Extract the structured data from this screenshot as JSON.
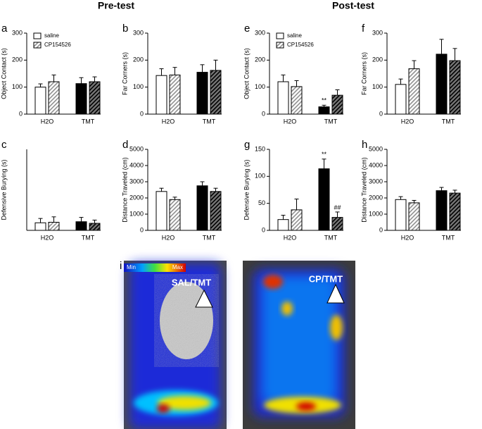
{
  "headers": [
    "Pre-test",
    "Post-test"
  ],
  "chart_data": [
    {
      "type": "bar",
      "panel": "a",
      "y_label": "Object Contact (s)",
      "categories": [
        "H2O",
        "TMT"
      ],
      "ylim": [
        0,
        300
      ],
      "yticks": [
        0,
        100,
        200,
        300
      ],
      "legend": true,
      "series": [
        {
          "name": "saline",
          "colors": [
            "#ffffff",
            "#000000"
          ],
          "hatch": false,
          "values": [
            100,
            113
          ],
          "errors": [
            12,
            22
          ]
        },
        {
          "name": "CP154526",
          "colors": [
            "#909090",
            "#000000"
          ],
          "hatch": true,
          "values": [
            120,
            120
          ],
          "errors": [
            25,
            18
          ]
        }
      ]
    },
    {
      "type": "bar",
      "panel": "b",
      "y_label": "Far Corners (s)",
      "categories": [
        "H2O",
        "TMT"
      ],
      "ylim": [
        0,
        300
      ],
      "yticks": [
        0,
        100,
        200,
        300
      ],
      "legend": false,
      "series": [
        {
          "name": "saline",
          "colors": [
            "#ffffff",
            "#000000"
          ],
          "hatch": false,
          "values": [
            143,
            155
          ],
          "errors": [
            25,
            28
          ]
        },
        {
          "name": "CP154526",
          "colors": [
            "#909090",
            "#000000"
          ],
          "hatch": true,
          "values": [
            145,
            162
          ],
          "errors": [
            28,
            38
          ]
        }
      ]
    },
    {
      "type": "bar",
      "panel": "c",
      "y_label": "Defensive Burying (s)",
      "categories": [
        "H2O",
        "TMT"
      ],
      "ylim": [
        0,
        150
      ],
      "yticks": [],
      "legend": false,
      "series": [
        {
          "name": "saline",
          "colors": [
            "#ffffff",
            "#000000"
          ],
          "hatch": false,
          "values": [
            14,
            16
          ],
          "errors": [
            8,
            8
          ]
        },
        {
          "name": "CP154526",
          "colors": [
            "#909090",
            "#000000"
          ],
          "hatch": true,
          "values": [
            15,
            13
          ],
          "errors": [
            10,
            6
          ]
        }
      ]
    },
    {
      "type": "bar",
      "panel": "d",
      "y_label": "Distance Traveled (cm)",
      "categories": [
        "H2O",
        "TMT"
      ],
      "ylim": [
        0,
        5000
      ],
      "yticks": [
        0,
        1000,
        2000,
        3000,
        4000,
        5000
      ],
      "legend": false,
      "series": [
        {
          "name": "saline",
          "colors": [
            "#ffffff",
            "#000000"
          ],
          "hatch": false,
          "values": [
            2400,
            2750
          ],
          "errors": [
            200,
            250
          ]
        },
        {
          "name": "CP154526",
          "colors": [
            "#909090",
            "#000000"
          ],
          "hatch": true,
          "values": [
            1900,
            2400
          ],
          "errors": [
            150,
            200
          ]
        }
      ]
    },
    {
      "type": "bar",
      "panel": "e",
      "y_label": "Object Contact (s)",
      "categories": [
        "H2O",
        "TMT"
      ],
      "ylim": [
        0,
        300
      ],
      "yticks": [
        0,
        100,
        200,
        300
      ],
      "legend": true,
      "series": [
        {
          "name": "saline",
          "colors": [
            "#ffffff",
            "#000000"
          ],
          "hatch": false,
          "values": [
            120,
            27
          ],
          "errors": [
            25,
            6
          ],
          "significance": [
            null,
            "**"
          ]
        },
        {
          "name": "CP154526",
          "colors": [
            "#909090",
            "#000000"
          ],
          "hatch": true,
          "values": [
            102,
            70
          ],
          "errors": [
            22,
            20
          ]
        }
      ]
    },
    {
      "type": "bar",
      "panel": "f",
      "y_label": "Far Corners (s)",
      "categories": [
        "H2O",
        "TMT"
      ],
      "ylim": [
        0,
        300
      ],
      "yticks": [
        0,
        100,
        200,
        300
      ],
      "legend": false,
      "series": [
        {
          "name": "saline",
          "colors": [
            "#ffffff",
            "#000000"
          ],
          "hatch": false,
          "values": [
            110,
            222
          ],
          "errors": [
            20,
            55
          ]
        },
        {
          "name": "CP154526",
          "colors": [
            "#909090",
            "#000000"
          ],
          "hatch": true,
          "values": [
            168,
            198
          ],
          "errors": [
            30,
            45
          ]
        }
      ]
    },
    {
      "type": "bar",
      "panel": "g",
      "y_label": "Defensive Burying (s)",
      "categories": [
        "H2O",
        "TMT"
      ],
      "ylim": [
        0,
        150
      ],
      "yticks": [
        0,
        50,
        100,
        150
      ],
      "legend": false,
      "series": [
        {
          "name": "saline",
          "colors": [
            "#ffffff",
            "#000000"
          ],
          "hatch": false,
          "values": [
            20,
            114
          ],
          "errors": [
            8,
            18
          ],
          "significance": [
            null,
            "**"
          ]
        },
        {
          "name": "CP154526",
          "colors": [
            "#909090",
            "#000000"
          ],
          "hatch": true,
          "values": [
            38,
            24
          ],
          "errors": [
            20,
            10
          ],
          "significance": [
            null,
            "##"
          ]
        }
      ]
    },
    {
      "type": "bar",
      "panel": "h",
      "y_label": "Distance Traveled (cm)",
      "categories": [
        "H2O",
        "TMT"
      ],
      "ylim": [
        0,
        5000
      ],
      "yticks": [
        0,
        1000,
        2000,
        3000,
        4000,
        5000
      ],
      "legend": false,
      "series": [
        {
          "name": "saline",
          "colors": [
            "#ffffff",
            "#000000"
          ],
          "hatch": false,
          "values": [
            1900,
            2450
          ],
          "errors": [
            180,
            200
          ]
        },
        {
          "name": "CP154526",
          "colors": [
            "#909090",
            "#000000"
          ],
          "hatch": true,
          "values": [
            1700,
            2300
          ],
          "errors": [
            150,
            180
          ]
        }
      ]
    }
  ],
  "heatmaps": {
    "panel": "i",
    "colorbar": [
      "Min",
      "Max"
    ],
    "labels": [
      "SAL/TMT",
      "CP/TMT"
    ]
  }
}
